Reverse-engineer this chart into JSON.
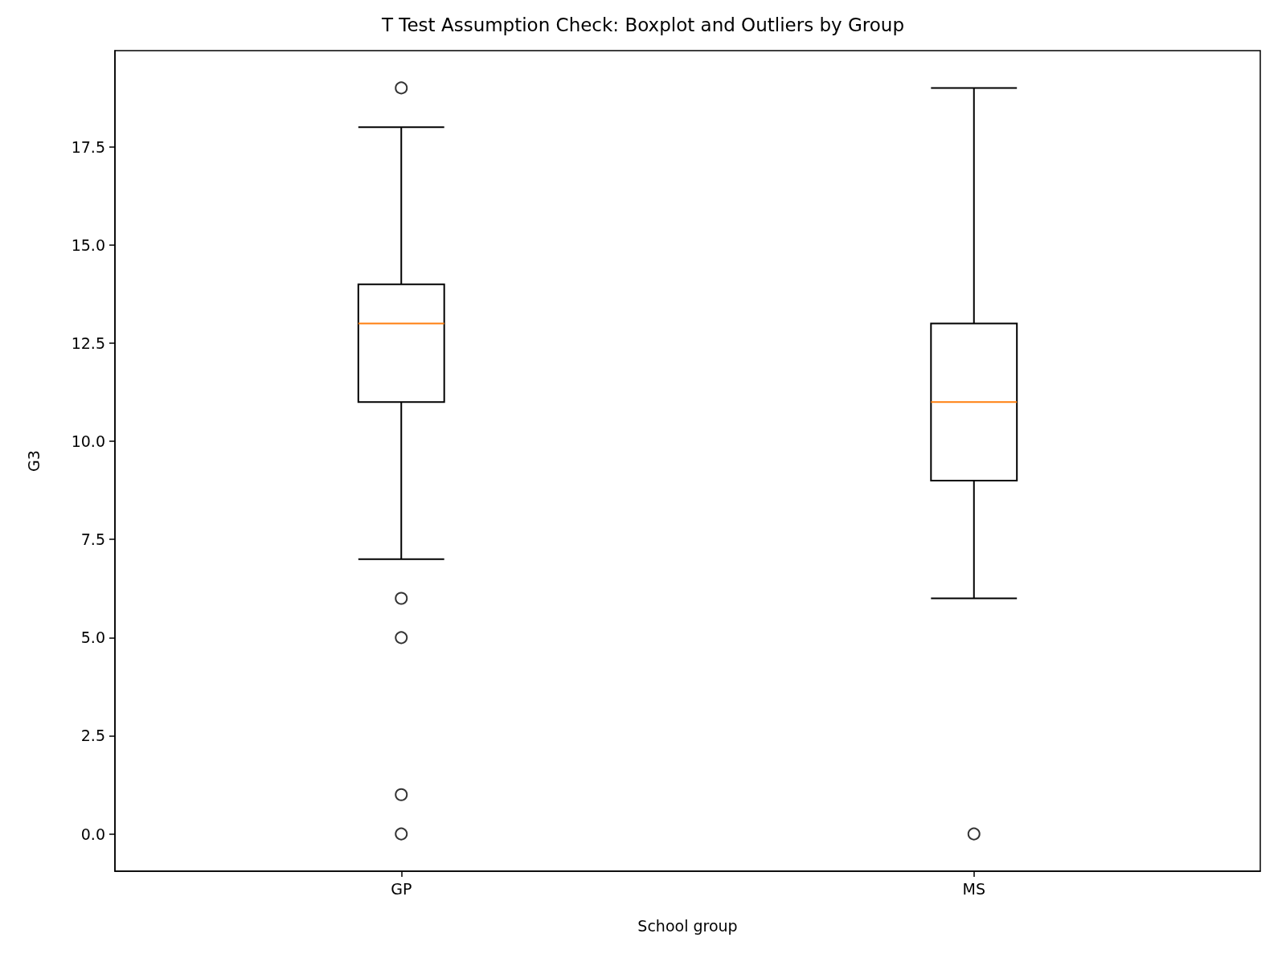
{
  "chart_data": {
    "type": "box",
    "title": "T Test Assumption Check: Boxplot and Outliers by Group",
    "xlabel": "School group",
    "ylabel": "G3",
    "categories": [
      "GP",
      "MS"
    ],
    "boxes": [
      {
        "low": 7,
        "q1": 11,
        "median": 13,
        "q3": 14,
        "high": 18,
        "outliers": [
          19,
          6,
          5,
          1,
          0
        ]
      },
      {
        "low": 6,
        "q1": 9,
        "median": 11,
        "q3": 13,
        "high": 19,
        "outliers": [
          0
        ]
      }
    ],
    "color": "#000000",
    "ylim": [
      -0.95,
      19.95
    ],
    "yticks": [
      {
        "value": 0,
        "label": "0.0"
      },
      {
        "value": 2.5,
        "label": "2.5"
      },
      {
        "value": 5,
        "label": "5.0"
      },
      {
        "value": 7.5,
        "label": "7.5"
      },
      {
        "value": 10,
        "label": "10.0"
      },
      {
        "value": 12.5,
        "label": "12.5"
      },
      {
        "value": 15,
        "label": "15.0"
      },
      {
        "value": 17.5,
        "label": "17.5"
      }
    ],
    "grid": false
  }
}
